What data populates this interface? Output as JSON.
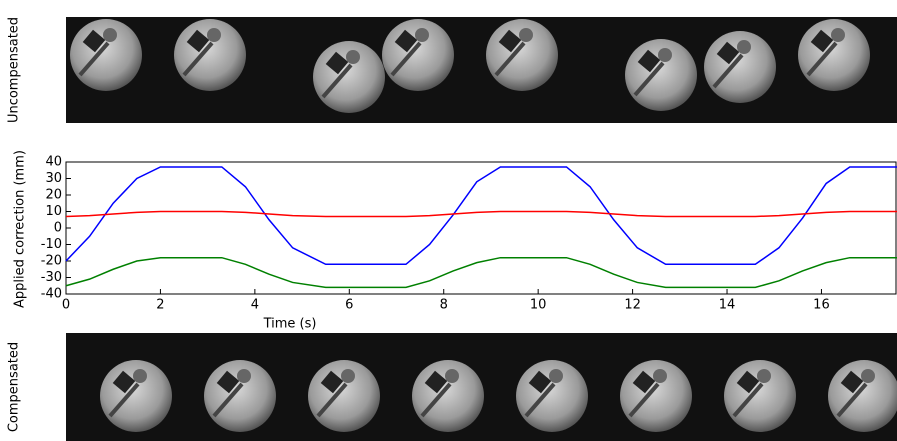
{
  "chart_data": {
    "type": "line",
    "top_label": "Uncompensated",
    "bottom_label": "Compensated",
    "xlabel": "Time (s)",
    "ylabel": "Applied correction (mm)",
    "x": [
      0,
      0.5,
      1,
      1.5,
      2,
      3.3,
      3.8,
      4.3,
      4.8,
      5.5,
      7.2,
      7.7,
      8.2,
      8.7,
      9.2,
      10.6,
      11.1,
      11.6,
      12.1,
      12.7,
      14.6,
      15.1,
      15.6,
      16.1,
      16.6,
      17.6
    ],
    "series": [
      {
        "color": "#0000ff",
        "values": [
          -20,
          -5,
          15,
          30,
          37,
          37,
          25,
          5,
          -12,
          -22,
          -22,
          -10,
          8,
          28,
          37,
          37,
          25,
          5,
          -12,
          -22,
          -22,
          -12,
          6,
          27,
          37,
          37
        ]
      },
      {
        "color": "#ff0000",
        "values": [
          7,
          7.5,
          8.5,
          9.5,
          10,
          10,
          9.5,
          8.5,
          7.5,
          7,
          7,
          7.5,
          8.5,
          9.5,
          10,
          10,
          9.5,
          8.5,
          7.5,
          7,
          7,
          7.5,
          8.5,
          9.5,
          10,
          10
        ]
      },
      {
        "color": "#008000",
        "values": [
          -35,
          -31,
          -25,
          -20,
          -18,
          -18,
          -22,
          -28,
          -33,
          -36,
          -36,
          -32,
          -26,
          -21,
          -18,
          -18,
          -22,
          -28,
          -33,
          -36,
          -36,
          -32,
          -26,
          -21,
          -18,
          -18
        ]
      }
    ],
    "xlim": [
      0,
      17.6
    ],
    "ylim": [
      -40,
      40
    ],
    "xticks": [
      0,
      2,
      4,
      6,
      8,
      10,
      12,
      14,
      16
    ],
    "yticks": [
      -40,
      -30,
      -20,
      -10,
      0,
      10,
      20,
      30,
      40
    ]
  }
}
